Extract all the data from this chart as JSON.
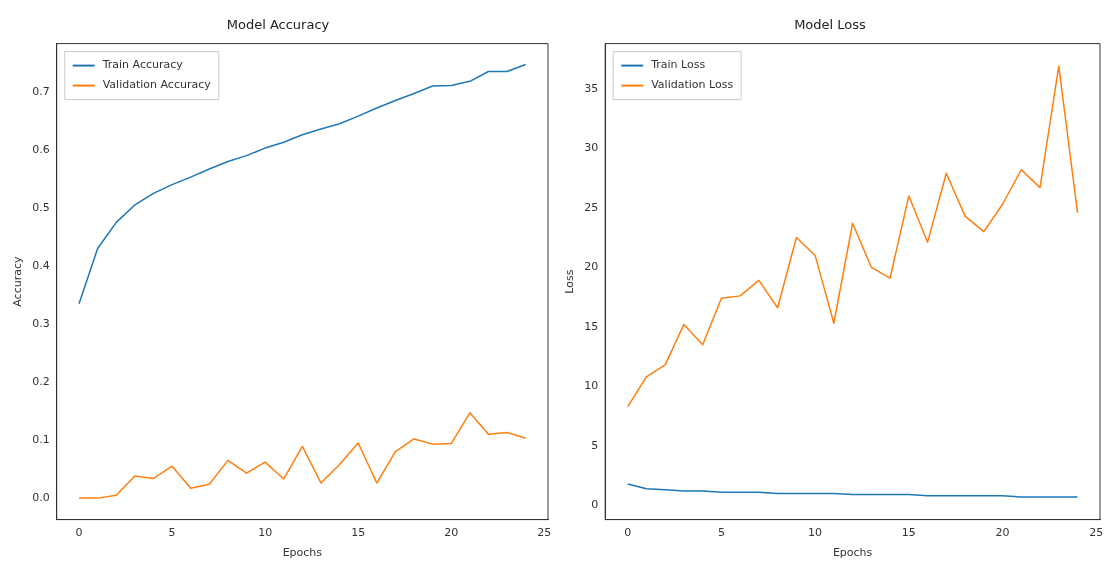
{
  "chart_data": [
    {
      "type": "line",
      "title": "Model Accuracy",
      "xlabel": "Epochs",
      "ylabel": "Accuracy",
      "x": [
        0,
        1,
        2,
        3,
        4,
        5,
        6,
        7,
        8,
        9,
        10,
        11,
        12,
        13,
        14,
        15,
        16,
        17,
        18,
        19,
        20,
        21,
        22,
        23,
        24
      ],
      "series": [
        {
          "name": "Train Accuracy",
          "color": "#1f77b4",
          "values": [
            0.335,
            0.43,
            0.475,
            0.505,
            0.525,
            0.54,
            0.553,
            0.567,
            0.58,
            0.59,
            0.603,
            0.613,
            0.626,
            0.636,
            0.645,
            0.658,
            0.672,
            0.685,
            0.697,
            0.71,
            0.711,
            0.718,
            0.735,
            0.735,
            0.747
          ]
        },
        {
          "name": "Validation Accuracy",
          "color": "#ff7f0e",
          "values": [
            0,
            0,
            0.005,
            0.038,
            0.034,
            0.055,
            0.017,
            0.024,
            0.065,
            0.043,
            0.062,
            0.033,
            0.089,
            0.026,
            0.058,
            0.095,
            0.026,
            0.08,
            0.102,
            0.093,
            0.094,
            0.147,
            0.11,
            0.113,
            0.103
          ]
        }
      ],
      "xlim": [
        -1.2,
        25.2
      ],
      "xticks": [
        0,
        5,
        10,
        15,
        20,
        25
      ],
      "ylim": [
        -0.037,
        0.783
      ],
      "yticks": [
        {
          "value": 0,
          "label": "0.0"
        },
        {
          "value": 0.1,
          "label": "0.1"
        },
        {
          "value": 0.2,
          "label": "0.2"
        },
        {
          "value": 0.3,
          "label": "0.3"
        },
        {
          "value": 0.4,
          "label": "0.4"
        },
        {
          "value": 0.5,
          "label": "0.5"
        },
        {
          "value": 0.6,
          "label": "0.6"
        },
        {
          "value": 0.7,
          "label": "0.7"
        }
      ],
      "legend": "top left",
      "grid": false,
      "marker": "none",
      "line_style": "solid"
    },
    {
      "type": "line",
      "title": "Model Loss",
      "xlabel": "Epochs",
      "ylabel": "Loss",
      "x": [
        0,
        1,
        2,
        3,
        4,
        5,
        6,
        7,
        8,
        9,
        10,
        11,
        12,
        13,
        14,
        15,
        16,
        17,
        18,
        19,
        20,
        21,
        22,
        23,
        24
      ],
      "series": [
        {
          "name": "Train Loss",
          "color": "#1f77b4",
          "values": [
            1.8,
            1.4,
            1.3,
            1.2,
            1.2,
            1.1,
            1.1,
            1.1,
            1.0,
            1.0,
            1.0,
            1.0,
            0.9,
            0.9,
            0.9,
            0.9,
            0.8,
            0.8,
            0.8,
            0.8,
            0.8,
            0.7,
            0.7,
            0.7,
            0.7
          ]
        },
        {
          "name": "Validation Loss",
          "color": "#ff7f0e",
          "values": [
            8.3,
            10.8,
            11.8,
            15.2,
            13.5,
            17.4,
            17.6,
            18.9,
            16.6,
            22.5,
            21,
            15.3,
            23.7,
            20,
            19.1,
            26,
            22.1,
            27.9,
            24.3,
            23,
            25.3,
            28.2,
            26.7,
            36.9,
            24.6
          ]
        }
      ],
      "xlim": [
        -1.2,
        25.2
      ],
      "xticks": [
        0,
        5,
        10,
        15,
        20,
        25
      ],
      "ylim": [
        -1.2,
        38.8
      ],
      "yticks": [
        0,
        5,
        10,
        15,
        20,
        25,
        30,
        35
      ],
      "legend": "top left",
      "grid": false,
      "marker": "none",
      "line_style": "solid"
    }
  ]
}
